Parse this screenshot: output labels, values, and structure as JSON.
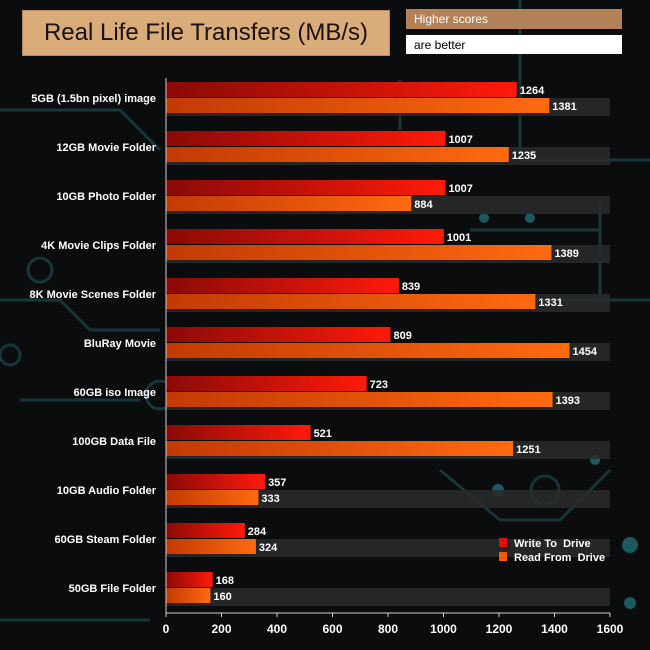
{
  "header": {
    "title": "Real Life File Transfers (MB/s)",
    "note_line1": "Higher scores",
    "note_line2": "are better"
  },
  "chart_data": {
    "type": "bar",
    "orientation": "horizontal",
    "title": "Real Life File Transfers (MB/s)",
    "categories": [
      "5GB (1.5bn pixel) image",
      "12GB Movie Folder",
      "10GB Photo Folder",
      "4K Movie Clips Folder",
      "8K Movie Scenes Folder",
      "BluRay Movie",
      "60GB iso Image",
      "100GB Data File",
      "10GB Audio Folder",
      "60GB Steam Folder",
      "50GB File Folder"
    ],
    "series": [
      {
        "name": "Write To  Drive",
        "color": "#e01008",
        "values": [
          1264,
          1007,
          1007,
          1001,
          839,
          809,
          723,
          521,
          357,
          284,
          168
        ]
      },
      {
        "name": "Read From  Drive",
        "color": "#f25a06",
        "values": [
          1381,
          1235,
          884,
          1389,
          1331,
          1454,
          1393,
          1251,
          333,
          324,
          160
        ]
      }
    ],
    "xlim": [
      0,
      1600
    ],
    "xticks": [
      "0",
      "200",
      "400",
      "600",
      "800",
      "1000",
      "1200",
      "1400",
      "1600"
    ],
    "legend_position": "bottom-right",
    "xlabel": "",
    "ylabel": ""
  }
}
